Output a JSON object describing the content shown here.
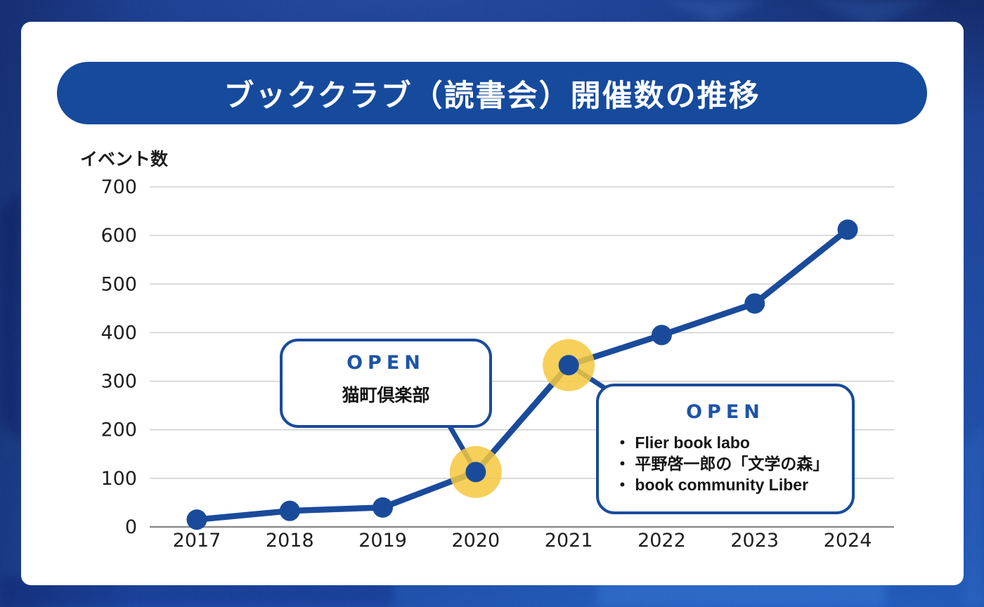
{
  "title": "ブッククラブ（読書会）開催数の推移",
  "chart_data": {
    "type": "line",
    "title": "ブッククラブ（読書会）開催数の推移",
    "ylabel": "イベント数",
    "xlabel": "",
    "categories": [
      "2017",
      "2018",
      "2019",
      "2020",
      "2021",
      "2022",
      "2023",
      "2024"
    ],
    "values": [
      15,
      33,
      40,
      113,
      333,
      395,
      460,
      612
    ],
    "ylim": [
      0,
      700
    ],
    "y_ticks": [
      700,
      600,
      500,
      400,
      300,
      200,
      100,
      0
    ],
    "grid": true,
    "legend": false,
    "highlight_years": [
      "2020",
      "2021"
    ],
    "line_color": "#1a4b9b",
    "highlight_color": "#f6c83e"
  },
  "callouts": [
    {
      "open_label": "OPEN",
      "items": [
        "猫町倶楽部"
      ],
      "bullet": ""
    },
    {
      "open_label": "OPEN",
      "items": [
        "Flier book labo",
        "平野啓一郎の「文学の森」",
        "book community Liber"
      ],
      "bullet": "・"
    }
  ]
}
